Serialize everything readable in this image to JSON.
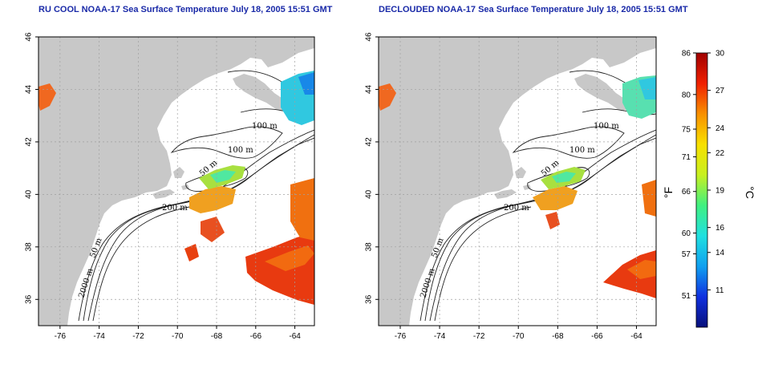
{
  "panels": [
    {
      "id": "left",
      "title": "RU COOL NOAA-17 Sea Surface Temperature July 18, 2005 15:51 GMT",
      "contour_labels": [
        "100 m",
        "100 m",
        "50 m",
        "200 m",
        "50 m",
        "2000 m"
      ]
    },
    {
      "id": "right",
      "title": "DECLOUDED NOAA-17 Sea Surface Temperature July 18, 2005 15:51 GMT",
      "contour_labels": [
        "100 m",
        "100 m",
        "50 m",
        "200 m",
        "50 m",
        "2000 m"
      ]
    }
  ],
  "axes": {
    "x_ticks": [
      "-76",
      "-74",
      "-72",
      "-70",
      "-68",
      "-66",
      "-64"
    ],
    "y_ticks": [
      "36",
      "38",
      "40",
      "42",
      "44",
      "46"
    ],
    "x_range": [
      -77.1,
      -63.0
    ],
    "y_range": [
      35.0,
      46.0
    ]
  },
  "colorbar": {
    "fahrenheit_ticks": [
      "86",
      "80",
      "75",
      "71",
      "66",
      "60",
      "57",
      "51"
    ],
    "celsius_ticks": [
      "30",
      "27",
      "24",
      "22",
      "19",
      "16",
      "14",
      "11"
    ],
    "fahrenheit_unit": "°F",
    "celsius_unit": "°C",
    "colors": [
      "#08107a",
      "#1030e0",
      "#10a0f0",
      "#20e0e0",
      "#40f080",
      "#c8f020",
      "#f8e000",
      "#f89000",
      "#f02000",
      "#a00000"
    ]
  },
  "colors": {
    "land": "#c8c8c8",
    "title": "#1a2aa8",
    "grid": "#a0a0a0"
  }
}
